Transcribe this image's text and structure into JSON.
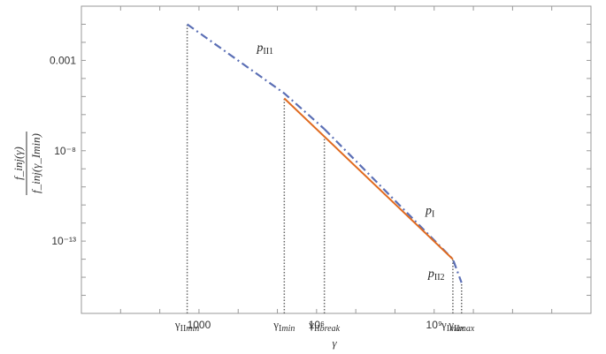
{
  "chart_data": {
    "type": "line",
    "x_scale": "log10",
    "y_scale": "log10",
    "xlim": [
      1,
      10000000000000
    ],
    "ylim": [
      1e-17,
      1
    ],
    "grid": false,
    "xlabel": "γ",
    "ylabel": {
      "numerator": "f_inj(γ)",
      "denominator": "f_inj(γ_Imin)"
    },
    "x_tick_labels": [
      {
        "x": 1000,
        "label": "1000"
      },
      {
        "x": 1000000,
        "label": "10⁶"
      },
      {
        "x": 1000000000,
        "label": "10⁹"
      }
    ],
    "y_tick_labels": [
      {
        "y": 0.001,
        "label": "0.001"
      },
      {
        "y": 1e-08,
        "label": "10⁻⁸"
      },
      {
        "y": 1e-13,
        "label": "10⁻¹³"
      }
    ],
    "markers": [
      {
        "x": 500,
        "y_top": 0.1,
        "label": "γ_IImin"
      },
      {
        "x": 150000,
        "y_top": 7.9e-06,
        "label": "γ_Imin"
      },
      {
        "x": 1580000,
        "y_top": 7.9e-08,
        "label": "γ_IIbreak"
      },
      {
        "x": 3000000000,
        "y_top": 1e-14,
        "label": "γ_Imax"
      },
      {
        "x": 5000000000,
        "y_top": 5e-16,
        "label": "γ_IImax"
      }
    ],
    "series": [
      {
        "name": "p_II1",
        "style": "dash-dot",
        "color": "#5b6fb5",
        "x": [
          500,
          150000,
          1580000
        ],
        "y": [
          0.1,
          1.5e-05,
          1.6e-07
        ]
      },
      {
        "name": "p_II2",
        "style": "dash-dot",
        "color": "#5b6fb5",
        "x": [
          1580000,
          3000000000,
          5000000000
        ],
        "y": [
          1.6e-07,
          1e-14,
          5e-16
        ]
      },
      {
        "name": "p_I",
        "style": "solid",
        "color": "#e06a1f",
        "x": [
          150000,
          3000000000
        ],
        "y": [
          7.9e-06,
          1e-14
        ]
      }
    ],
    "series_labels": [
      {
        "text": "p_II1",
        "x": 30000,
        "y": 0.00316
      },
      {
        "text": "p_I",
        "x": 600000000,
        "y": 3.16e-12
      },
      {
        "text": "p_II2",
        "x": 700000000,
        "y": 1e-15
      }
    ]
  }
}
